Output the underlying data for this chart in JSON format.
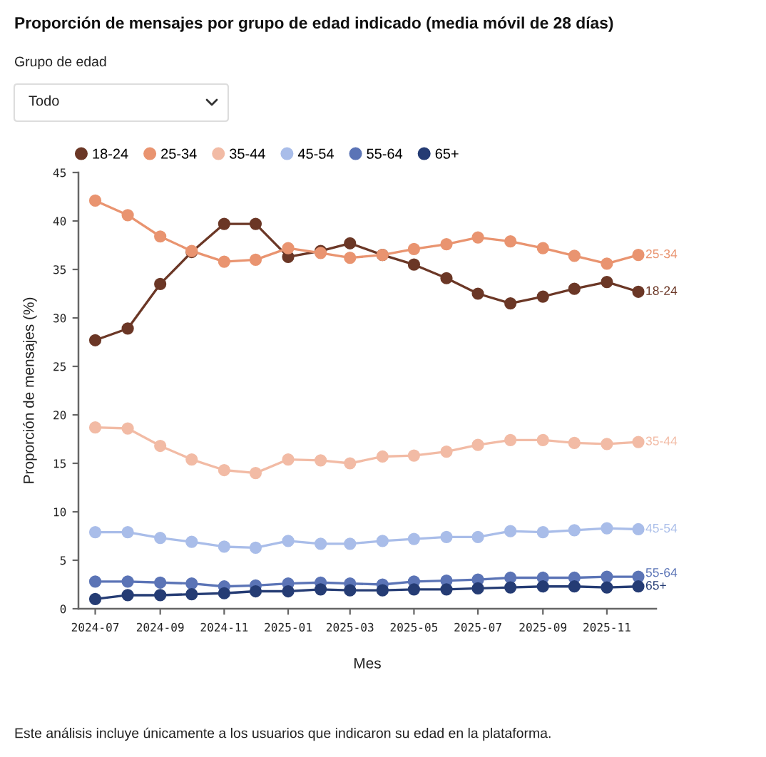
{
  "chart_data": {
    "type": "line",
    "title": "Proporción de mensajes por grupo de edad indicado (media móvil de 28 días)",
    "xlabel": "Mes",
    "ylabel": "Proporción de mensajes (%)",
    "annotations": [
      "Grupo de edad",
      "Todo",
      "Este análisis incluye únicamente a los usuarios que indicaron su edad en la plataforma."
    ],
    "x": [
      "2024-07",
      "2024-08",
      "2024-09",
      "2024-10",
      "2024-11",
      "2024-12",
      "2025-01",
      "2025-02",
      "2025-03",
      "2025-04",
      "2025-05",
      "2025-06",
      "2025-07",
      "2025-08",
      "2025-09",
      "2025-10",
      "2025-11",
      "2025-12"
    ],
    "series": [
      {
        "name": "18-24",
        "color": "#6b3726",
        "values": [
          27.7,
          28.9,
          33.5,
          36.8,
          39.7,
          39.7,
          36.3,
          36.9,
          37.7,
          36.5,
          35.5,
          34.1,
          32.5,
          31.5,
          32.2,
          33.0,
          33.7,
          32.7
        ]
      },
      {
        "name": "25-34",
        "color": "#e99470",
        "values": [
          42.1,
          40.6,
          38.4,
          36.9,
          35.8,
          36.0,
          37.2,
          36.7,
          36.2,
          36.5,
          37.1,
          37.6,
          38.3,
          37.9,
          37.2,
          36.4,
          35.6,
          36.5
        ]
      },
      {
        "name": "35-44",
        "color": "#f2bba5",
        "values": [
          18.7,
          18.6,
          16.8,
          15.4,
          14.3,
          14.0,
          15.4,
          15.3,
          15.0,
          15.7,
          15.8,
          16.2,
          16.9,
          17.4,
          17.4,
          17.1,
          17.0,
          17.2
        ]
      },
      {
        "name": "45-54",
        "color": "#a9bde9",
        "values": [
          7.9,
          7.9,
          7.3,
          6.9,
          6.4,
          6.3,
          7.0,
          6.7,
          6.7,
          7.0,
          7.2,
          7.4,
          7.4,
          8.0,
          7.9,
          8.1,
          8.3,
          8.2
        ]
      },
      {
        "name": "55-64",
        "color": "#5b74b6",
        "values": [
          2.8,
          2.8,
          2.7,
          2.6,
          2.3,
          2.4,
          2.6,
          2.7,
          2.6,
          2.5,
          2.8,
          2.9,
          3.0,
          3.2,
          3.2,
          3.2,
          3.3,
          3.3
        ]
      },
      {
        "name": "65+",
        "color": "#253c74",
        "values": [
          1.0,
          1.4,
          1.4,
          1.5,
          1.6,
          1.8,
          1.8,
          2.0,
          1.9,
          1.9,
          2.0,
          2.0,
          2.1,
          2.2,
          2.3,
          2.3,
          2.2,
          2.3
        ]
      }
    ],
    "xlim": [
      "2024-06-15",
      "2025-12-18"
    ],
    "xticks": [
      "2024-07",
      "2024-09",
      "2024-11",
      "2025-01",
      "2025-03",
      "2025-05",
      "2025-07",
      "2025-09",
      "2025-11"
    ],
    "ylim": [
      0,
      45
    ],
    "yticks": [
      0,
      5,
      10,
      15,
      20,
      25,
      30,
      35,
      40,
      45
    ],
    "grid": false,
    "legend": "top left",
    "marker": "circle",
    "line_style": "solid"
  }
}
